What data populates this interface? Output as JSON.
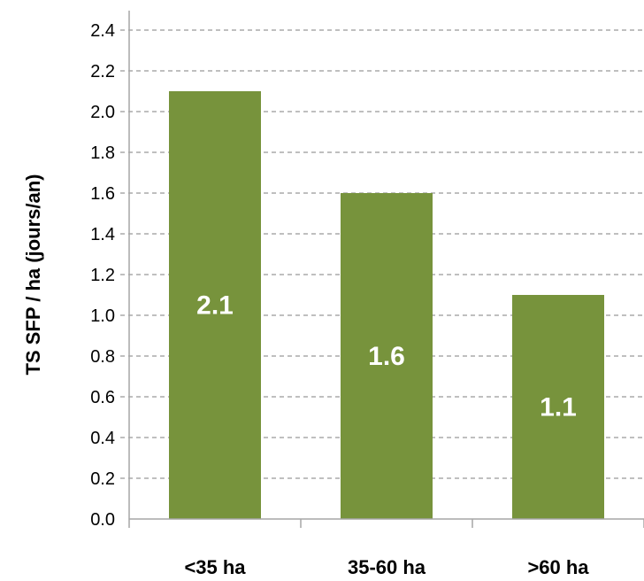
{
  "chart_data": {
    "type": "bar",
    "categories": [
      "<35 ha",
      "35-60 ha",
      ">60 ha"
    ],
    "values": [
      2.1,
      1.6,
      1.1
    ],
    "data_labels": [
      "2.1",
      "1.6",
      "1.1"
    ],
    "ylabel": "TS SFP / ha (jours/an)",
    "ylim": [
      0,
      2.4
    ],
    "yticks": [
      "0.0",
      "0.2",
      "0.4",
      "0.6",
      "0.8",
      "1.0",
      "1.2",
      "1.4",
      "1.6",
      "1.8",
      "2.0",
      "2.2",
      "2.4"
    ],
    "grid": true,
    "bar_color": "#77933c"
  }
}
